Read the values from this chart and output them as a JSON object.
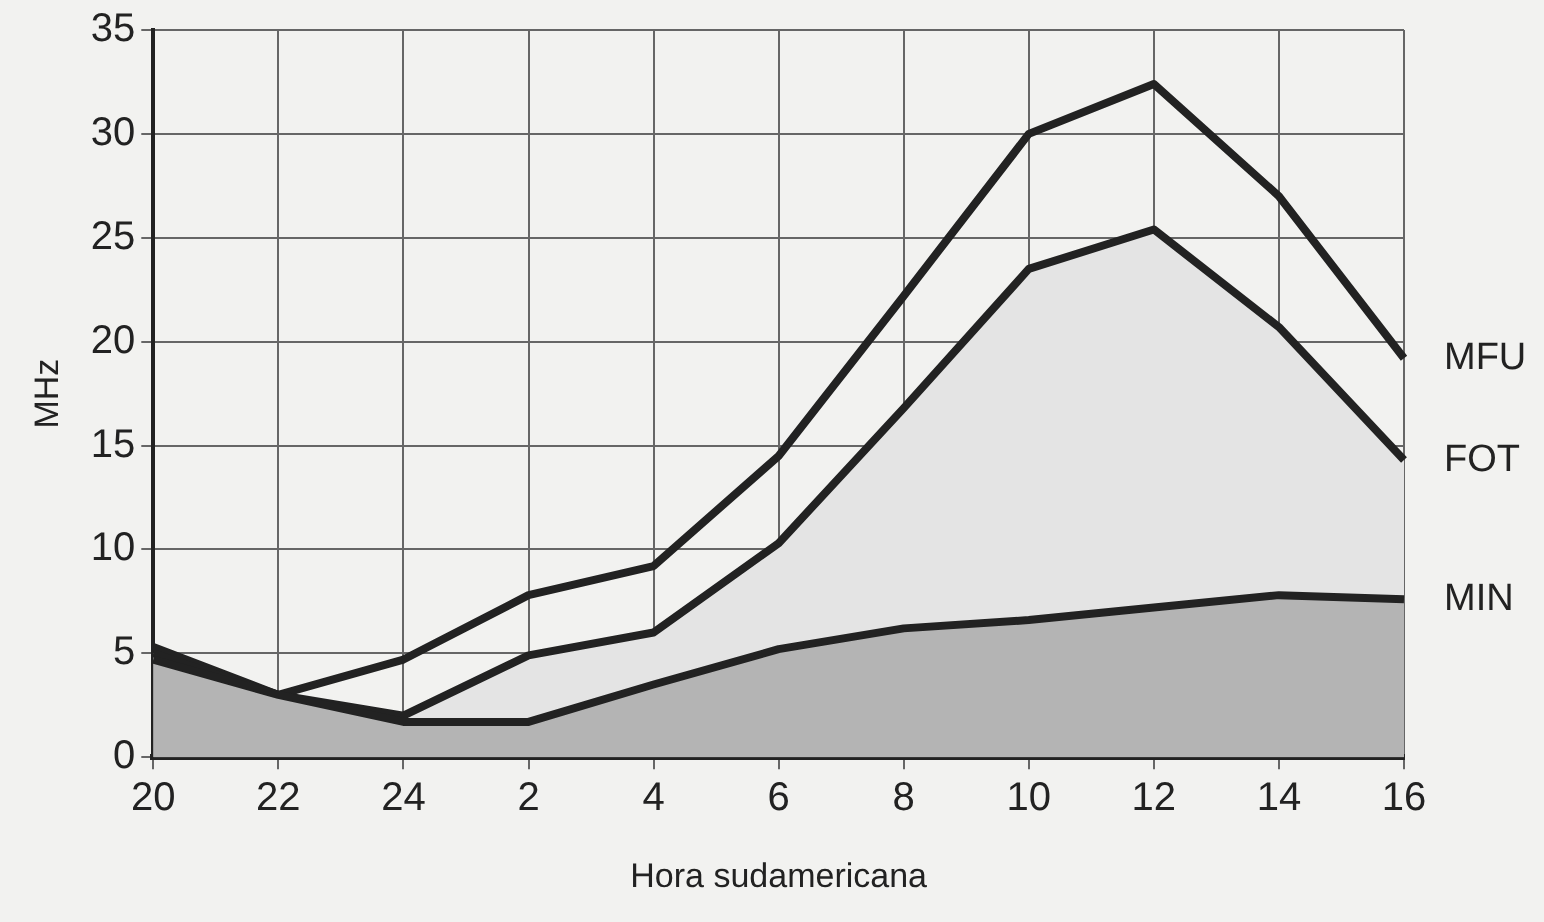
{
  "chart_data": {
    "type": "line",
    "xlabel": "Hora sudamericana",
    "ylabel": "MHz",
    "categories": [
      "20",
      "22",
      "24",
      "2",
      "4",
      "6",
      "8",
      "10",
      "12",
      "14",
      "16"
    ],
    "series": [
      {
        "name": "MFU",
        "color": "#222222",
        "values": [
          5.3,
          3.0,
          4.7,
          7.8,
          9.2,
          14.5,
          22.2,
          30.0,
          32.4,
          27.0,
          19.2
        ]
      },
      {
        "name": "FOT",
        "type": "area",
        "color": "#e4e4e4",
        "values": [
          5.0,
          3.0,
          2.0,
          4.9,
          6.0,
          10.3,
          16.8,
          23.5,
          25.4,
          20.7,
          14.3
        ]
      },
      {
        "name": "MIN",
        "type": "area",
        "color": "#b4b4b4",
        "values": [
          4.7,
          3.0,
          1.7,
          1.7,
          3.5,
          5.2,
          6.2,
          6.6,
          7.2,
          7.8,
          7.6
        ]
      }
    ],
    "ylim": [
      0,
      35
    ],
    "yticks": [
      0,
      5,
      10,
      15,
      20,
      25,
      30,
      35
    ],
    "grid": true,
    "legend": false,
    "marker": "none",
    "line_style": "solid"
  }
}
